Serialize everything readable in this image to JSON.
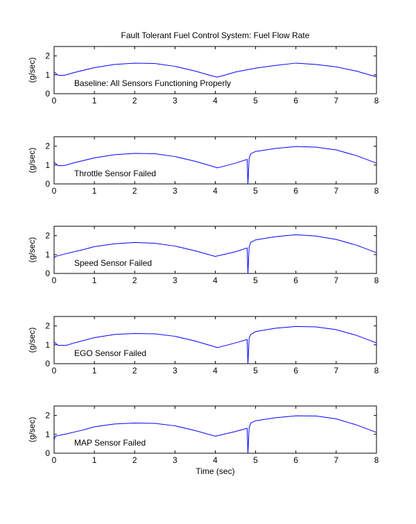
{
  "chart_data": {
    "type": "line",
    "title": "Fault Tolerant Fuel Control System: Fuel Flow Rate",
    "xlabel": "Time (sec)",
    "line_color": "#0000ff",
    "subplots": [
      {
        "ylabel": "(g/sec)",
        "annotation": "Baseline: All Sensors Functioning Properly",
        "xlim": [
          0,
          8
        ],
        "ylim": [
          0,
          2.5
        ],
        "xticks": [
          "0",
          "1",
          "2",
          "3",
          "4",
          "5",
          "6",
          "7",
          "8"
        ],
        "yticks": [
          "0",
          "1",
          "2"
        ],
        "x": [
          0,
          0.1,
          0.25,
          0.5,
          1,
          1.5,
          2,
          2.5,
          3,
          3.5,
          3.9,
          4.05,
          4.2,
          4.5,
          5,
          5.5,
          6,
          6.5,
          7,
          7.5,
          7.9,
          8
        ],
        "y": [
          1.15,
          0.98,
          0.97,
          1.12,
          1.38,
          1.55,
          1.62,
          1.6,
          1.45,
          1.2,
          0.95,
          0.88,
          0.96,
          1.15,
          1.35,
          1.5,
          1.62,
          1.55,
          1.42,
          1.2,
          0.95,
          0.9
        ]
      },
      {
        "ylabel": "(g/sec)",
        "annotation": "Throttle Sensor Failed",
        "xlim": [
          0,
          8
        ],
        "ylim": [
          0,
          2.5
        ],
        "xticks": [
          "0",
          "1",
          "2",
          "3",
          "4",
          "5",
          "6",
          "7",
          "8"
        ],
        "yticks": [
          "0",
          "1",
          "2"
        ],
        "x": [
          0,
          0.1,
          0.25,
          0.5,
          1,
          1.5,
          2,
          2.5,
          3,
          3.5,
          3.9,
          4.05,
          4.2,
          4.5,
          4.79,
          4.81,
          4.84,
          4.88,
          5,
          5.5,
          6,
          6.5,
          7,
          7.5,
          8
        ],
        "y": [
          1.15,
          0.97,
          0.97,
          1.12,
          1.38,
          1.55,
          1.62,
          1.6,
          1.45,
          1.2,
          0.95,
          0.85,
          0.93,
          1.1,
          1.3,
          0.02,
          1.35,
          1.6,
          1.72,
          1.88,
          1.98,
          1.95,
          1.8,
          1.5,
          1.1
        ]
      },
      {
        "ylabel": "(g/sec)",
        "annotation": "Speed Sensor Failed",
        "xlim": [
          0,
          8
        ],
        "ylim": [
          0,
          2.5
        ],
        "xticks": [
          "0",
          "1",
          "2",
          "3",
          "4",
          "5",
          "6",
          "7",
          "8"
        ],
        "yticks": [
          "0",
          "1",
          "2"
        ],
        "x": [
          0,
          0.03,
          0.3,
          0.7,
          1,
          1.5,
          2,
          2.5,
          3,
          3.5,
          4,
          4.5,
          4.79,
          4.81,
          4.84,
          4.88,
          5,
          5.5,
          6,
          6.5,
          7,
          7.5,
          8
        ],
        "y": [
          0.8,
          0.9,
          1.05,
          1.25,
          1.42,
          1.57,
          1.64,
          1.6,
          1.45,
          1.2,
          0.9,
          1.15,
          1.35,
          0.02,
          1.4,
          1.65,
          1.78,
          1.95,
          2.05,
          1.98,
          1.8,
          1.5,
          1.1
        ]
      },
      {
        "ylabel": "(g/sec)",
        "annotation": "EGO Sensor Failed",
        "xlim": [
          0,
          8
        ],
        "ylim": [
          0,
          2.5
        ],
        "xticks": [
          "0",
          "1",
          "2",
          "3",
          "4",
          "5",
          "6",
          "7",
          "8"
        ],
        "yticks": [
          "0",
          "1",
          "2"
        ],
        "x": [
          0,
          0.1,
          0.3,
          0.5,
          1,
          1.5,
          2,
          2.5,
          3,
          3.5,
          3.9,
          4.05,
          4.2,
          4.5,
          4.79,
          4.81,
          4.84,
          4.88,
          5,
          5.5,
          6,
          6.5,
          7,
          7.5,
          8
        ],
        "y": [
          1.15,
          0.97,
          0.97,
          1.1,
          1.38,
          1.55,
          1.6,
          1.58,
          1.45,
          1.2,
          0.95,
          0.85,
          0.93,
          1.1,
          1.28,
          0.02,
          1.35,
          1.55,
          1.7,
          1.88,
          1.97,
          1.95,
          1.8,
          1.5,
          1.1
        ]
      },
      {
        "ylabel": "(g/sec)",
        "annotation": "MAP Sensor Failed",
        "xlim": [
          0,
          8
        ],
        "ylim": [
          0,
          2.5
        ],
        "xticks": [
          "0",
          "1",
          "2",
          "3",
          "4",
          "5",
          "6",
          "7",
          "8"
        ],
        "yticks": [
          "0",
          "1",
          "2"
        ],
        "x": [
          0,
          0.03,
          0.3,
          0.7,
          1,
          1.5,
          2,
          2.5,
          3,
          3.5,
          4,
          4.5,
          4.79,
          4.81,
          4.84,
          4.88,
          5,
          5.5,
          6,
          6.5,
          7,
          7.5,
          8
        ],
        "y": [
          0.7,
          0.9,
          1.02,
          1.22,
          1.4,
          1.55,
          1.6,
          1.58,
          1.45,
          1.2,
          0.9,
          1.15,
          1.32,
          0.02,
          1.35,
          1.6,
          1.72,
          1.88,
          1.98,
          1.97,
          1.82,
          1.5,
          1.1
        ]
      }
    ]
  }
}
